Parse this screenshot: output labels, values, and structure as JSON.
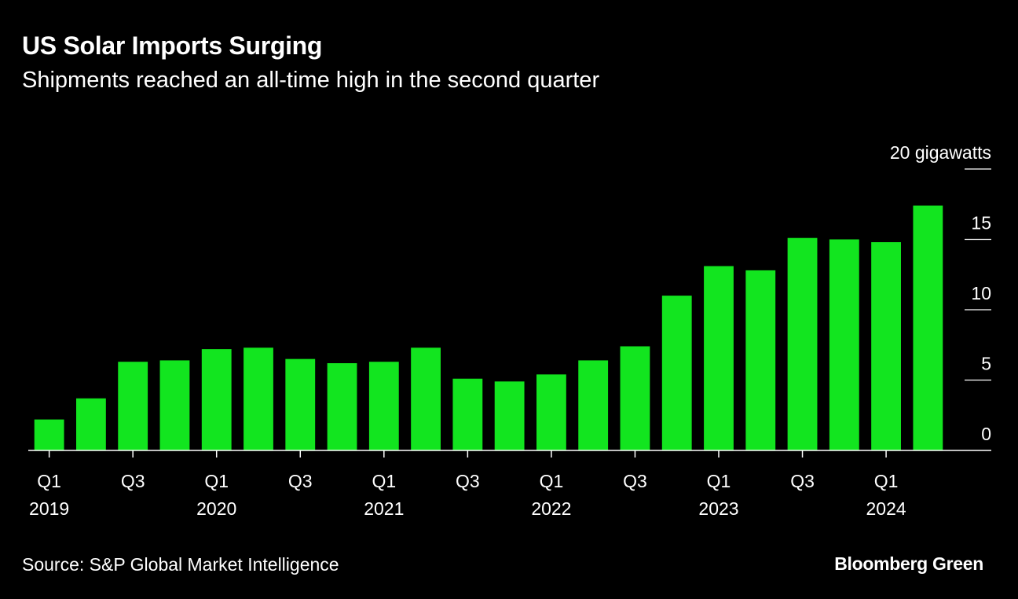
{
  "header": {
    "title": "US Solar Imports Surging",
    "subtitle": "Shipments reached an all-time high in the second quarter"
  },
  "footer": {
    "source": "Source: S&P Global Market Intelligence",
    "brand": "Bloomberg Green"
  },
  "colors": {
    "background": "#000000",
    "bar": "#12e51f",
    "text": "#ffffff"
  },
  "chart_data": {
    "type": "bar",
    "title": "US Solar Imports Surging",
    "subtitle": "Shipments reached an all-time high in the second quarter",
    "unit_label": "20 gigawatts",
    "xlabel": "",
    "ylabel": "gigawatts",
    "ylim": [
      0,
      20
    ],
    "yticks": [
      0,
      5,
      10,
      15,
      20
    ],
    "ytick_labels": [
      "0",
      "5",
      "10",
      "15",
      "20 gigawatts"
    ],
    "grid": false,
    "categories": [
      "Q1 2019",
      "Q2 2019",
      "Q3 2019",
      "Q4 2019",
      "Q1 2020",
      "Q2 2020",
      "Q3 2020",
      "Q4 2020",
      "Q1 2021",
      "Q2 2021",
      "Q3 2021",
      "Q4 2021",
      "Q1 2022",
      "Q2 2022",
      "Q3 2022",
      "Q4 2022",
      "Q1 2023",
      "Q2 2023",
      "Q3 2023",
      "Q4 2023",
      "Q1 2024",
      "Q2 2024"
    ],
    "values": [
      2.2,
      3.7,
      6.3,
      6.4,
      7.2,
      7.3,
      6.5,
      6.2,
      6.3,
      7.3,
      5.1,
      4.9,
      5.4,
      6.4,
      7.4,
      11.0,
      13.1,
      12.8,
      15.1,
      15.0,
      14.8,
      17.4
    ],
    "x_tick_labels": [
      {
        "index": 0,
        "quarter": "Q1",
        "year": "2019"
      },
      {
        "index": 2,
        "quarter": "Q3",
        "year": ""
      },
      {
        "index": 4,
        "quarter": "Q1",
        "year": "2020"
      },
      {
        "index": 6,
        "quarter": "Q3",
        "year": ""
      },
      {
        "index": 8,
        "quarter": "Q1",
        "year": "2021"
      },
      {
        "index": 10,
        "quarter": "Q3",
        "year": ""
      },
      {
        "index": 12,
        "quarter": "Q1",
        "year": "2022"
      },
      {
        "index": 14,
        "quarter": "Q3",
        "year": ""
      },
      {
        "index": 16,
        "quarter": "Q1",
        "year": "2023"
      },
      {
        "index": 18,
        "quarter": "Q3",
        "year": ""
      },
      {
        "index": 20,
        "quarter": "Q1",
        "year": "2024"
      }
    ]
  }
}
